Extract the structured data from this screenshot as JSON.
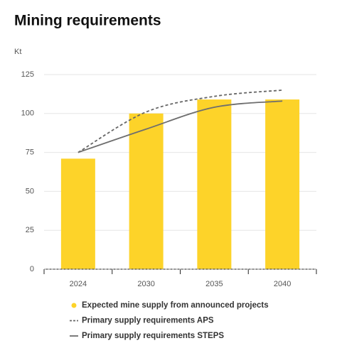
{
  "chart_data": {
    "type": "bar",
    "title": "Mining requirements",
    "y_unit": "Kt",
    "categories": [
      "2024",
      "2030",
      "2035",
      "2040"
    ],
    "ylim": [
      0,
      125
    ],
    "yticks": [
      0,
      25,
      50,
      75,
      100,
      125
    ],
    "grid": true,
    "series": [
      {
        "name": "Expected mine supply from announced projects",
        "type": "bar",
        "color": "#fdd329",
        "values": [
          71,
          100,
          109,
          109
        ]
      },
      {
        "name": "Primary supply requirements APS",
        "type": "line",
        "style": "dashed",
        "color": "#666666",
        "values": [
          75,
          101,
          111,
          115
        ]
      },
      {
        "name": "Primary supply requirements STEPS",
        "type": "line",
        "style": "solid",
        "color": "#6e6e6e",
        "values": [
          75,
          90,
          104,
          108
        ]
      }
    ]
  }
}
